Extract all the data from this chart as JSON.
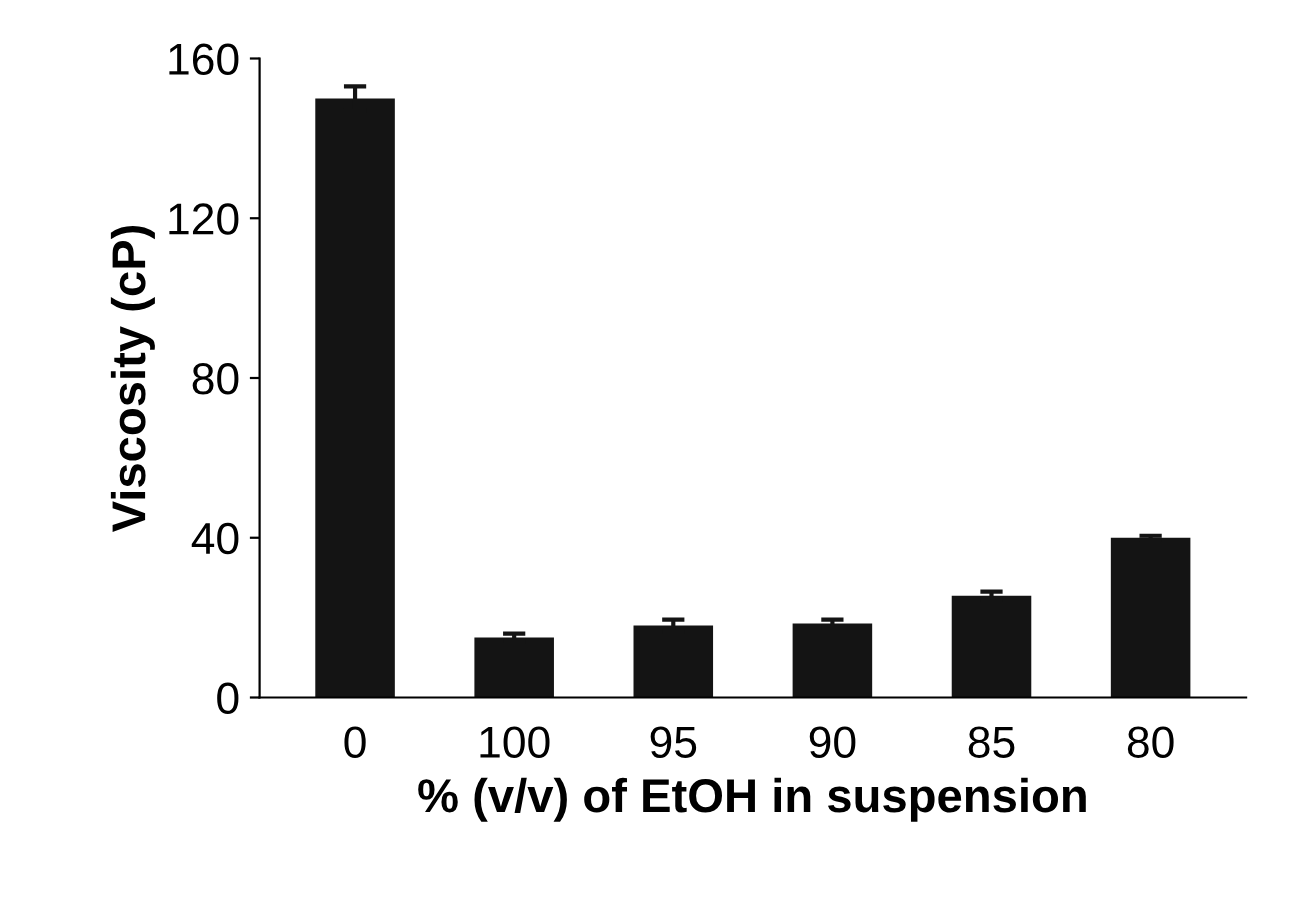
{
  "chart_data": {
    "type": "bar",
    "xlabel": "% (v/v) of EtOH in suspension",
    "ylabel": "Viscosity (cP)",
    "categories": [
      "0",
      "100",
      "95",
      "90",
      "85",
      "80"
    ],
    "values": [
      150,
      15,
      18,
      18.5,
      25.5,
      40
    ],
    "errors": [
      3,
      1,
      1.5,
      1,
      1,
      0.5
    ],
    "color": "#141414",
    "ylim": [
      0,
      160
    ],
    "yticks": [
      0,
      40,
      80,
      120,
      160
    ],
    "grid": false
  }
}
